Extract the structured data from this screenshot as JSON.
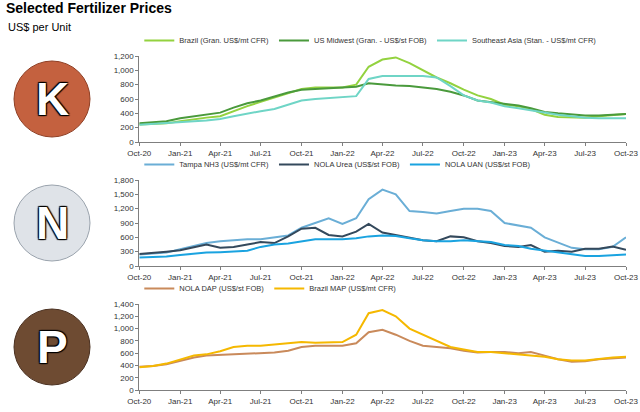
{
  "title": "Selected Fertilizer Prices",
  "subtitle": "US$ per Unit",
  "chart_data": [
    {
      "type": "line",
      "title": "K",
      "x": [
        "2020-10",
        "2020-11",
        "2020-12",
        "2021-01",
        "2021-02",
        "2021-03",
        "2021-04",
        "2021-05",
        "2021-06",
        "2021-07",
        "2021-08",
        "2021-09",
        "2021-10",
        "2021-11",
        "2021-12",
        "2022-01",
        "2022-02",
        "2022-03",
        "2022-04",
        "2022-05",
        "2022-06",
        "2022-07",
        "2022-08",
        "2022-09",
        "2022-10",
        "2022-11",
        "2022-12",
        "2023-01",
        "2023-02",
        "2023-03",
        "2023-04",
        "2023-05",
        "2023-06",
        "2023-07",
        "2023-08",
        "2023-09",
        "2023-10"
      ],
      "xlim": [
        "2020-10",
        "2023-10"
      ],
      "xticks": [
        {
          "value": "2020-10",
          "label": "Oct-20"
        },
        {
          "value": "2021-01",
          "label": "Jan-21"
        },
        {
          "value": "2021-04",
          "label": "Apr-21"
        },
        {
          "value": "2021-07",
          "label": "Jul-21"
        },
        {
          "value": "2021-10",
          "label": "Oct-21"
        },
        {
          "value": "2022-01",
          "label": "Jan-22"
        },
        {
          "value": "2022-04",
          "label": "Apr-22"
        },
        {
          "value": "2022-07",
          "label": "Jul-22"
        },
        {
          "value": "2022-10",
          "label": "Oct-22"
        },
        {
          "value": "2023-01",
          "label": "Jan-23"
        },
        {
          "value": "2023-04",
          "label": "Apr-23"
        },
        {
          "value": "2023-07",
          "label": "Jul-23"
        },
        {
          "value": "2023-10",
          "label": "Oct-23"
        }
      ],
      "ylim": [
        0,
        1200
      ],
      "yticks": [
        0,
        200,
        400,
        600,
        800,
        {
          "value": 1000,
          "label": "1,000"
        },
        {
          "value": 1200,
          "label": "1,200"
        }
      ],
      "grid": false,
      "legend": "top",
      "series": [
        {
          "name": "Brazil (Gran. US$/mt CFR)",
          "color": "#93d23f",
          "values": [
            245,
            250,
            260,
            290,
            320,
            340,
            360,
            430,
            500,
            560,
            620,
            690,
            740,
            760,
            760,
            760,
            800,
            1050,
            1150,
            1180,
            1100,
            1000,
            900,
            820,
            730,
            650,
            600,
            520,
            500,
            460,
            380,
            350,
            340,
            340,
            360,
            380,
            390
          ]
        },
        {
          "name": "US Midwest (Gran. - US$/st FOB)",
          "color": "#4a9a3c",
          "values": [
            260,
            270,
            290,
            330,
            360,
            390,
            410,
            480,
            540,
            580,
            640,
            690,
            730,
            740,
            750,
            760,
            770,
            820,
            800,
            790,
            780,
            760,
            740,
            700,
            650,
            580,
            560,
            540,
            510,
            470,
            420,
            400,
            380,
            370,
            370,
            380,
            390
          ]
        },
        {
          "name": "Southeast Asia (Stan. - US$/mt CFR)",
          "color": "#6fd5c6",
          "values": [
            240,
            250,
            260,
            270,
            290,
            300,
            320,
            360,
            400,
            430,
            460,
            520,
            580,
            600,
            610,
            620,
            640,
            880,
            920,
            920,
            920,
            920,
            900,
            780,
            650,
            580,
            550,
            500,
            470,
            440,
            410,
            380,
            360,
            340,
            330,
            330,
            330
          ]
        }
      ]
    },
    {
      "type": "line",
      "title": "N",
      "x": [
        "2020-10",
        "2020-11",
        "2020-12",
        "2021-01",
        "2021-02",
        "2021-03",
        "2021-04",
        "2021-05",
        "2021-06",
        "2021-07",
        "2021-08",
        "2021-09",
        "2021-10",
        "2021-11",
        "2021-12",
        "2022-01",
        "2022-02",
        "2022-03",
        "2022-04",
        "2022-05",
        "2022-06",
        "2022-07",
        "2022-08",
        "2022-09",
        "2022-10",
        "2022-11",
        "2022-12",
        "2023-01",
        "2023-02",
        "2023-03",
        "2023-04",
        "2023-05",
        "2023-06",
        "2023-07",
        "2023-08",
        "2023-09",
        "2023-10"
      ],
      "xlim": [
        "2020-10",
        "2023-10"
      ],
      "xticks": [
        {
          "value": "2020-10",
          "label": "Oct-20"
        },
        {
          "value": "2021-01",
          "label": "Jan-21"
        },
        {
          "value": "2021-04",
          "label": "Apr-21"
        },
        {
          "value": "2021-07",
          "label": "Jul-21"
        },
        {
          "value": "2021-10",
          "label": "Oct-21"
        },
        {
          "value": "2022-01",
          "label": "Jan-22"
        },
        {
          "value": "2022-04",
          "label": "Apr-22"
        },
        {
          "value": "2022-07",
          "label": "Jul-22"
        },
        {
          "value": "2022-10",
          "label": "Oct-22"
        },
        {
          "value": "2023-01",
          "label": "Jan-23"
        },
        {
          "value": "2023-04",
          "label": "Apr-23"
        },
        {
          "value": "2023-07",
          "label": "Jul-23"
        },
        {
          "value": "2023-10",
          "label": "Oct-23"
        }
      ],
      "ylim": [
        0,
        1800
      ],
      "yticks": [
        0,
        300,
        600,
        900,
        {
          "value": 1200,
          "label": "1,200"
        },
        {
          "value": 1500,
          "label": "1,500"
        },
        {
          "value": 1800,
          "label": "1,800"
        }
      ],
      "grid": false,
      "legend": "top",
      "series": [
        {
          "name": "Tampa NH3 (US$/mt CFR)",
          "color": "#6aaed6",
          "values": [
            240,
            260,
            280,
            350,
            420,
            480,
            520,
            540,
            560,
            560,
            600,
            640,
            800,
            900,
            1000,
            880,
            1000,
            1400,
            1600,
            1500,
            1150,
            1130,
            1100,
            1150,
            1200,
            1200,
            1150,
            900,
            850,
            800,
            600,
            500,
            380,
            350,
            350,
            400,
            600
          ]
        },
        {
          "name": "NOLA Urea (US$/st FOB)",
          "color": "#34495c",
          "values": [
            250,
            270,
            300,
            330,
            400,
            450,
            380,
            400,
            450,
            500,
            480,
            620,
            780,
            800,
            650,
            620,
            720,
            880,
            700,
            650,
            600,
            540,
            520,
            620,
            600,
            520,
            480,
            420,
            400,
            440,
            300,
            320,
            300,
            360,
            360,
            410,
            340
          ]
        },
        {
          "name": "NOLA UAN (US$/st FOB)",
          "color": "#1aa3e0",
          "values": [
            180,
            190,
            200,
            230,
            260,
            280,
            290,
            300,
            320,
            400,
            450,
            470,
            520,
            560,
            560,
            560,
            580,
            620,
            640,
            630,
            580,
            540,
            520,
            520,
            540,
            520,
            500,
            440,
            420,
            360,
            320,
            280,
            240,
            210,
            210,
            220,
            240
          ]
        }
      ]
    },
    {
      "type": "line",
      "title": "P",
      "x": [
        "2020-10",
        "2020-11",
        "2020-12",
        "2021-01",
        "2021-02",
        "2021-03",
        "2021-04",
        "2021-05",
        "2021-06",
        "2021-07",
        "2021-08",
        "2021-09",
        "2021-10",
        "2021-11",
        "2021-12",
        "2022-01",
        "2022-02",
        "2022-03",
        "2022-04",
        "2022-05",
        "2022-06",
        "2022-07",
        "2022-08",
        "2022-09",
        "2022-10",
        "2022-11",
        "2022-12",
        "2023-01",
        "2023-02",
        "2023-03",
        "2023-04",
        "2023-05",
        "2023-06",
        "2023-07",
        "2023-08",
        "2023-09",
        "2023-10"
      ],
      "xlim": [
        "2020-10",
        "2023-10"
      ],
      "xticks": [
        {
          "value": "2020-10",
          "label": "Oct-20"
        },
        {
          "value": "2021-01",
          "label": "Jan-21"
        },
        {
          "value": "2021-04",
          "label": "Apr-21"
        },
        {
          "value": "2021-07",
          "label": "Jul-21"
        },
        {
          "value": "2021-10",
          "label": "Oct-21"
        },
        {
          "value": "2022-01",
          "label": "Jan-22"
        },
        {
          "value": "2022-04",
          "label": "Apr-22"
        },
        {
          "value": "2022-07",
          "label": "Jul-22"
        },
        {
          "value": "2022-10",
          "label": "Oct-22"
        },
        {
          "value": "2023-01",
          "label": "Jan-23"
        },
        {
          "value": "2023-04",
          "label": "Apr-23"
        },
        {
          "value": "2023-07",
          "label": "Jul-23"
        },
        {
          "value": "2023-10",
          "label": "Oct-23"
        }
      ],
      "ylim": [
        0,
        1400
      ],
      "yticks": [
        0,
        200,
        400,
        600,
        800,
        {
          "value": 1000,
          "label": "1,000"
        },
        {
          "value": 1200,
          "label": "1,200"
        },
        {
          "value": 1400,
          "label": "1,400"
        }
      ],
      "grid": false,
      "legend": "top",
      "series": [
        {
          "name": "NOLA DAP (US$/st FOB)",
          "color": "#c98a5b",
          "values": [
            380,
            390,
            420,
            480,
            530,
            560,
            570,
            590,
            600,
            600,
            610,
            640,
            700,
            720,
            720,
            720,
            760,
            940,
            980,
            900,
            800,
            720,
            700,
            680,
            640,
            610,
            620,
            620,
            600,
            620,
            560,
            500,
            460,
            470,
            500,
            520,
            530
          ]
        },
        {
          "name": "Brazil MAP (US$/mt CFR)",
          "color": "#f5b800",
          "values": [
            370,
            390,
            430,
            500,
            560,
            580,
            630,
            700,
            720,
            720,
            740,
            760,
            780,
            770,
            770,
            780,
            900,
            1250,
            1300,
            1200,
            1000,
            900,
            800,
            700,
            660,
            620,
            620,
            600,
            580,
            560,
            540,
            500,
            480,
            480,
            510,
            530,
            540
          ]
        }
      ]
    }
  ]
}
